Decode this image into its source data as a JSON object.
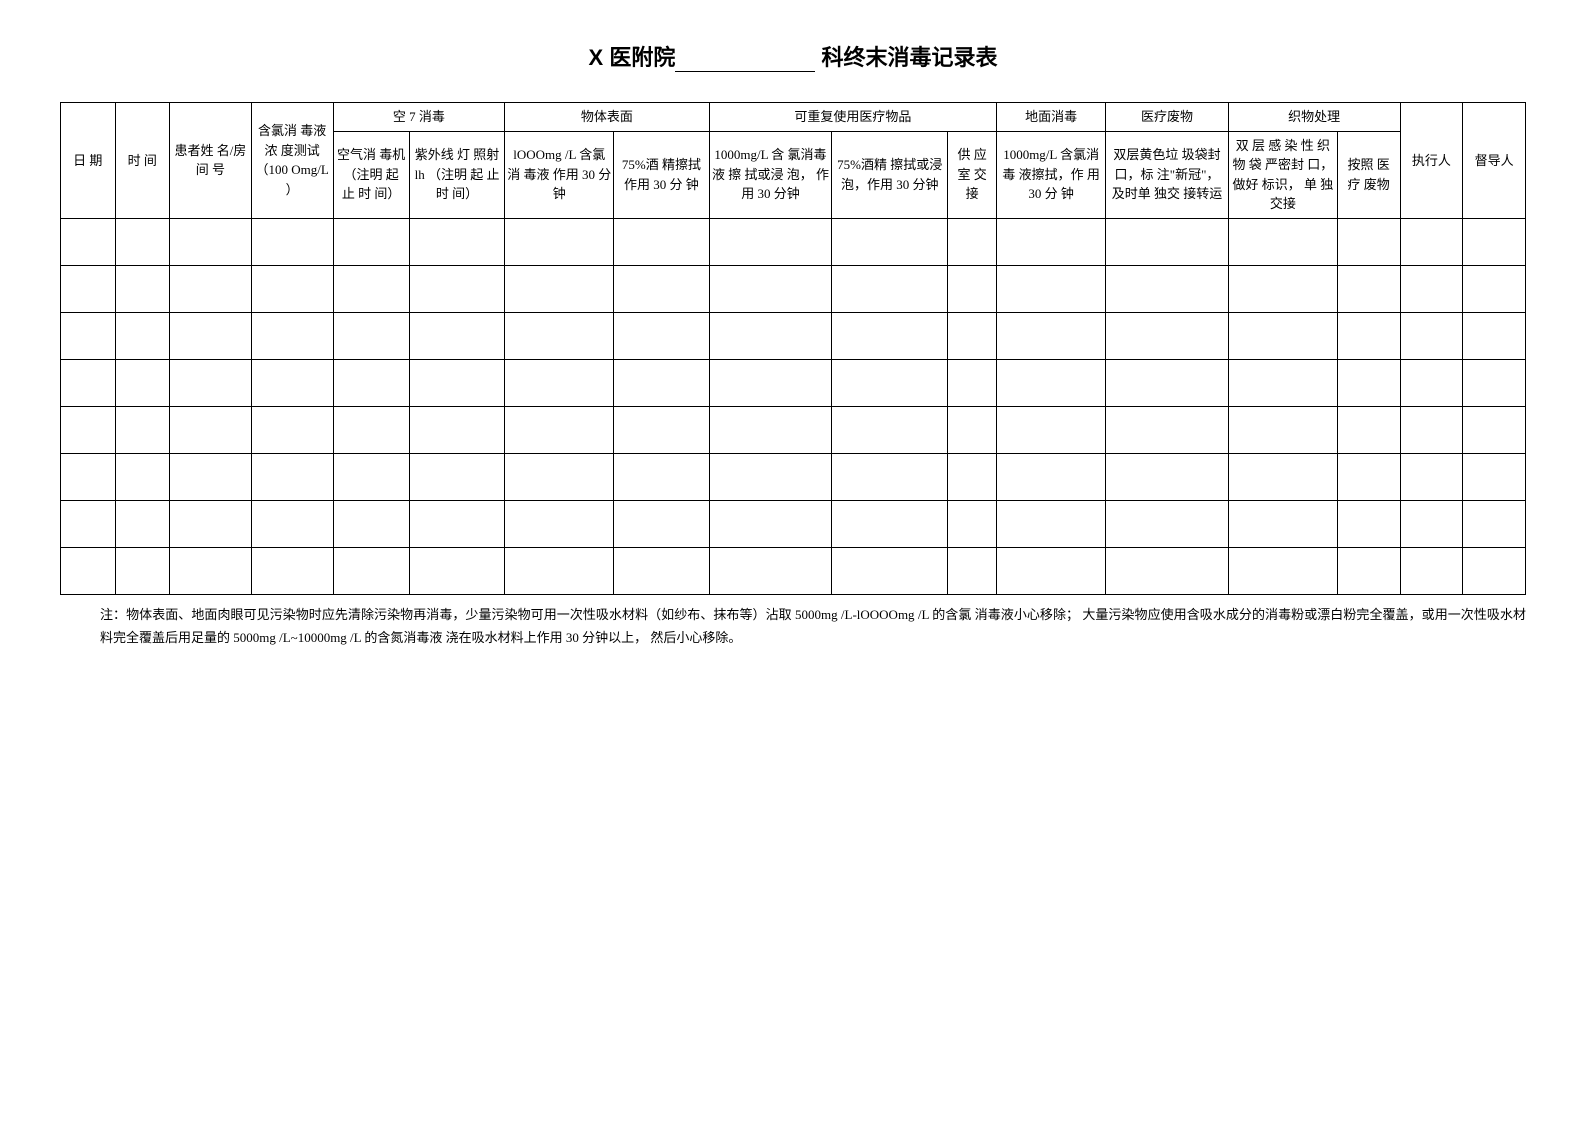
{
  "title": {
    "prefix": "X 医附院",
    "suffix": " 科终末消毒记录表"
  },
  "headers": {
    "date": "日 期",
    "time": "时 间",
    "patient": "患者姓 名/房 间 号",
    "chlorine_test": "含氯消 毒液浓 度测试 （100 Omg/L ）",
    "air_group": "空 7 消毒",
    "air_machine": "空气消 毒机 （注明 起 止 时 间）",
    "uv_lamp": "紫外线 灯 照射 lh （注明 起 止时 间）",
    "surface_group": "物体表面",
    "surface_chlorine": "lOOOmg /L 含氯 消 毒液 作用 30 分钟",
    "surface_alcohol": "75%酒 精擦拭 作用 30 分 钟",
    "reusable_group": "可重复使用医疗物品",
    "reusable_chlorine": "1000mg/L 含 氯消毒液 擦 拭或浸 泡， 作用 30 分钟",
    "reusable_alcohol": "75%酒精 擦拭或浸 泡，作用 30 分钟",
    "supply": "供 应 室 交 接",
    "floor": "地面消毒",
    "floor_detail": "1000mg/L 含氯消毒 液擦拭，作 用 30 分 钟",
    "waste": "医疗废物",
    "waste_detail": "双层黄色垃 圾袋封口，标 注\"新冠\"， 及时单 独交 接转运",
    "fabric_group": "织物处理",
    "fabric_bag": "双 层 感 染 性 织 物 袋 严密封 口， 做好 标识， 单 独交接",
    "fabric_regulation": "按照 医 疗 废物",
    "executor": "执行人",
    "supervisor": "督导人"
  },
  "footnote": "注：物体表面、地面肉眼可见污染物时应先清除污染物再消毒，少量污染物可用一次性吸水材料（如纱布、抹布等）沾取 5000mg /L-lOOOOmg /L 的含氯 消毒液小心移除； 大量污染物应使用含吸水成分的消毒粉或漂白粉完全覆盖，或用一次性吸水材料完全覆盖后用足量的 5000mg /L~10000mg /L 的含氮消毒液 浇在吸水材料上作用 30 分钟以上， 然后小心移除。",
  "empty_rows": 8
}
